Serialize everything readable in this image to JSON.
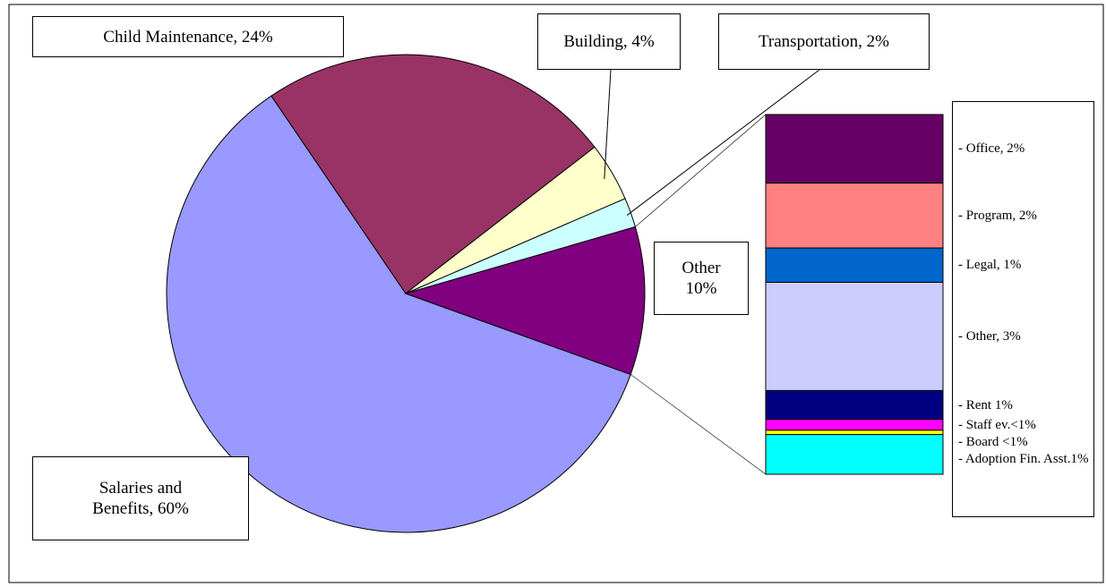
{
  "chart_data": {
    "type": "pie-of-bar",
    "slices": {
      "labels": [
        "Salaries and\nBenefits, 60%",
        "Child Maintenance, 24%",
        "Building, 4%",
        "Transportation, 2%",
        "Other\n10%"
      ],
      "values": [
        60,
        24,
        4,
        2,
        10
      ],
      "colors": [
        "#9999ff",
        "#993366",
        "#ffffcc",
        "#ccffff",
        "#800080"
      ]
    },
    "breakdown": {
      "labels": [
        "- Office, 2%",
        "- Program, 2%",
        "- Legal, 1%",
        "- Other, 3%",
        "- Rent 1%",
        "- Staff ev.<1%",
        "- Board <1%",
        "- Adoption Fin. Asst.1%"
      ],
      "values": [
        1.9,
        1.8,
        0.95,
        3.0,
        0.8,
        0.3,
        0.12,
        1.1
      ],
      "colors": [
        "#660066",
        "#ff8080",
        "#0066cc",
        "#ccccff",
        "#000080",
        "#ff00ff",
        "#ffff00",
        "#00ffff"
      ]
    }
  }
}
